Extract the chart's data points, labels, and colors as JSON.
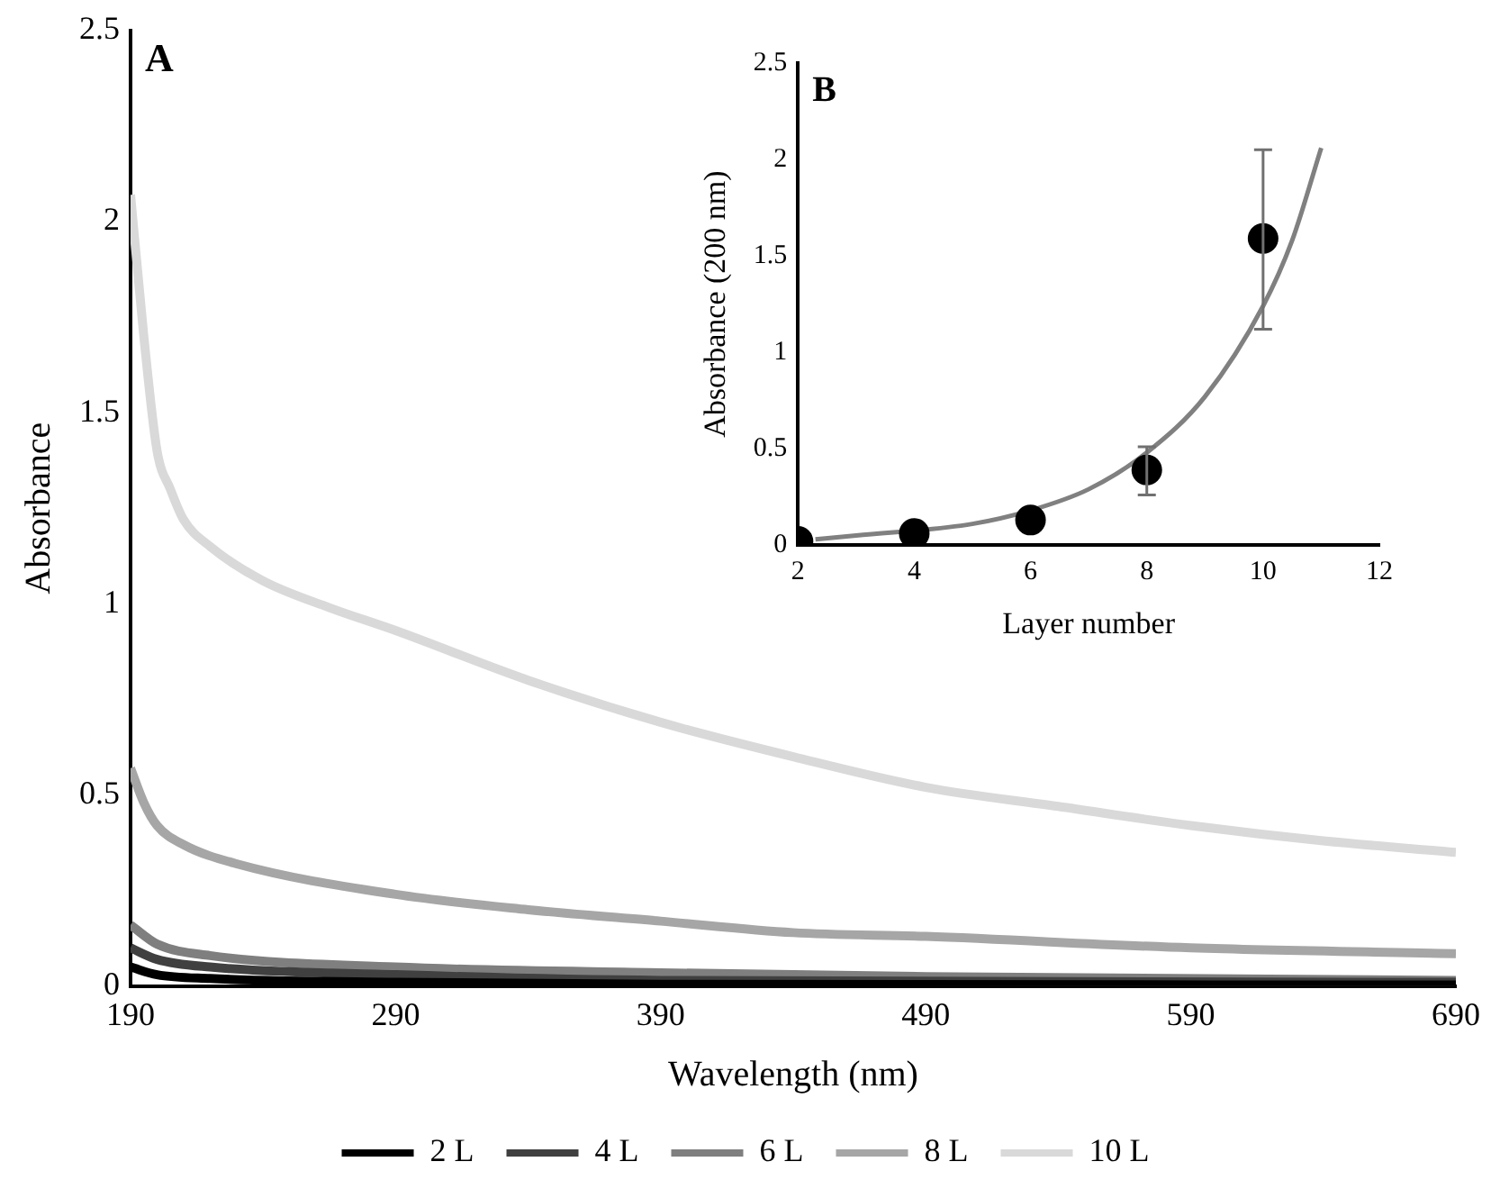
{
  "chart_data": [
    {
      "type": "line",
      "title": "A",
      "xlabel": "Wavelength (nm)",
      "ylabel": "Absorbance",
      "xlim": [
        190,
        690
      ],
      "xticks": [
        190,
        290,
        390,
        490,
        590,
        690
      ],
      "ylim": [
        0,
        2.5
      ],
      "yticks": [
        0,
        0.5,
        1,
        1.5,
        2,
        2.5
      ],
      "legend": "bottom",
      "marker": "none",
      "series": [
        {
          "name": "2 L",
          "color": "#000000",
          "x": [
            190,
            200,
            220,
            290,
            390,
            690
          ],
          "values": [
            0.05,
            0.03,
            0.02,
            0.01,
            0.005,
            0.003
          ]
        },
        {
          "name": "4 L",
          "color": "#404040",
          "x": [
            190,
            200,
            220,
            290,
            390,
            690
          ],
          "values": [
            0.1,
            0.07,
            0.05,
            0.03,
            0.015,
            0.01
          ]
        },
        {
          "name": "6 L",
          "color": "#7f7f7f",
          "x": [
            190,
            200,
            220,
            290,
            390,
            490,
            690
          ],
          "values": [
            0.16,
            0.11,
            0.08,
            0.05,
            0.035,
            0.025,
            0.015
          ]
        },
        {
          "name": "8 L",
          "color": "#a6a6a6",
          "x": [
            190,
            195,
            200,
            210,
            230,
            290,
            340,
            390,
            440,
            490,
            590,
            690
          ],
          "values": [
            0.57,
            0.48,
            0.42,
            0.37,
            0.32,
            0.24,
            0.2,
            0.17,
            0.14,
            0.13,
            0.1,
            0.085
          ]
        },
        {
          "name": "10 L",
          "color": "#d9d9d9",
          "x": [
            190,
            195,
            200,
            205,
            210,
            220,
            240,
            265,
            290,
            340,
            390,
            440,
            490,
            540,
            590,
            640,
            690
          ],
          "values": [
            2.07,
            1.7,
            1.4,
            1.3,
            1.22,
            1.15,
            1.06,
            0.99,
            0.93,
            0.8,
            0.69,
            0.6,
            0.52,
            0.47,
            0.42,
            0.38,
            0.35
          ]
        }
      ]
    },
    {
      "type": "scatter",
      "title": "B",
      "xlabel": "Layer number",
      "ylabel": "Absorbance (200 nm)",
      "xlim": [
        2,
        12
      ],
      "xticks": [
        2,
        4,
        6,
        8,
        10,
        12
      ],
      "ylim": [
        0,
        2.5
      ],
      "yticks": [
        0,
        0.5,
        1,
        1.5,
        2,
        2.5
      ],
      "series": [
        {
          "marker": "circle",
          "color": "#000000",
          "x": [
            2,
            4,
            6,
            8,
            10
          ],
          "values": [
            0.02,
            0.06,
            0.13,
            0.39,
            1.59
          ],
          "errors": [
            null,
            null,
            null,
            [
              0.26,
              0.51
            ],
            [
              1.12,
              2.05
            ]
          ]
        },
        {
          "type": "line",
          "marker": "none",
          "color": "#808080",
          "x": [
            2.3,
            3,
            5,
            6,
            7,
            8,
            9,
            10,
            10.5,
            11
          ],
          "values": [
            0.03,
            0.05,
            0.11,
            0.18,
            0.29,
            0.48,
            0.77,
            1.24,
            1.58,
            2.06
          ]
        }
      ]
    }
  ]
}
